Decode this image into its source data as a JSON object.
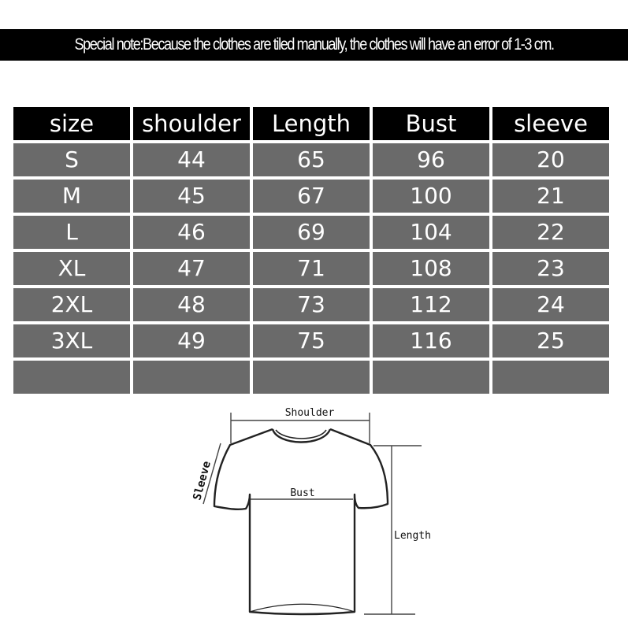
{
  "note": "Special note:Because the clothes are tiled manually, the clothes will have an error of 1-3 cm.",
  "table": {
    "headers": [
      "size",
      "shoulder",
      "Length",
      "Bust",
      "sleeve"
    ],
    "rows": [
      [
        "S",
        "44",
        "65",
        "96",
        "20"
      ],
      [
        "M",
        "45",
        "67",
        "100",
        "21"
      ],
      [
        "L",
        "46",
        "69",
        "104",
        "22"
      ],
      [
        "XL",
        "47",
        "71",
        "108",
        "23"
      ],
      [
        "2XL",
        "48",
        "73",
        "112",
        "24"
      ],
      [
        "3XL",
        "49",
        "75",
        "116",
        "25"
      ],
      [
        "",
        "",
        "",
        "",
        ""
      ]
    ]
  },
  "diagram": {
    "shoulder_label": "Shoulder",
    "sleeve_label": "Sleeve",
    "bust_label": "Bust",
    "length_label": "Length"
  },
  "colors": {
    "header_bg": "#000000",
    "cell_bg": "#6a6a6a",
    "text": "#ffffff"
  }
}
